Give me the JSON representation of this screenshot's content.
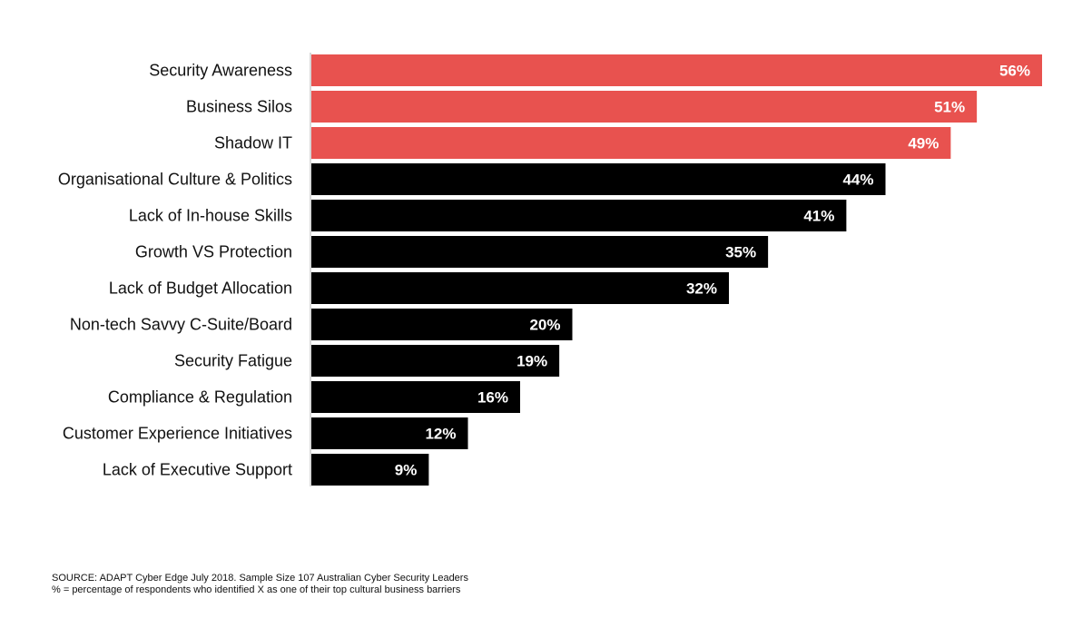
{
  "chart_data": {
    "type": "bar",
    "orientation": "horizontal",
    "categories": [
      "Security Awareness",
      "Business Silos",
      "Shadow IT",
      "Organisational Culture & Politics",
      "Lack of In-house Skills",
      "Growth VS Protection",
      "Lack of Budget Allocation",
      "Non-tech Savvy C-Suite/Board",
      "Security Fatigue",
      "Compliance & Regulation",
      "Customer Experience Initiatives",
      "Lack of Executive Support"
    ],
    "values": [
      56,
      51,
      49,
      44,
      41,
      35,
      32,
      20,
      19,
      16,
      12,
      9
    ],
    "value_labels": [
      "56%",
      "51%",
      "49%",
      "44%",
      "41%",
      "35%",
      "32%",
      "20%",
      "19%",
      "16%",
      "12%",
      "9%"
    ],
    "highlight_count": 3,
    "colors": {
      "highlight": "#e8524f",
      "default": "#000000",
      "axis": "#cccccc"
    },
    "xlim": [
      0,
      56
    ],
    "grid": false,
    "legend": "none"
  },
  "footnotes": {
    "source": "SOURCE: ADAPT Cyber Edge July 2018. Sample Size 107 Australian Cyber Security Leaders",
    "definition": "% = percentage of respondents who identified X as one of their top cultural business barriers"
  }
}
